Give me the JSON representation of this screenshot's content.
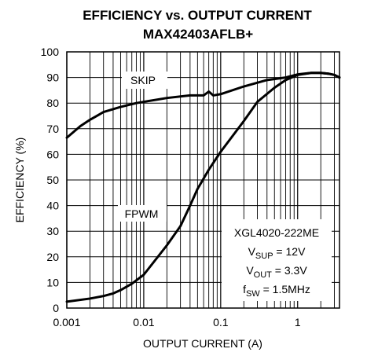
{
  "chart_data": {
    "type": "line",
    "title": "EFFICIENCY vs. OUTPUT CURRENT",
    "subtitle": "MAX42403AFLB+",
    "xlabel": "OUTPUT CURRENT (A)",
    "ylabel": "EFFICIENCY (%)",
    "x_scale": "log",
    "xlim": [
      0.001,
      3.5
    ],
    "ylim": [
      0,
      100
    ],
    "x_ticks": [
      "0.001",
      "0.01",
      "0.1",
      "1"
    ],
    "y_ticks": [
      "0",
      "10",
      "20",
      "30",
      "40",
      "50",
      "60",
      "70",
      "80",
      "90",
      "100"
    ],
    "grid": true,
    "series": [
      {
        "name": "SKIP",
        "x": [
          0.001,
          0.0015,
          0.002,
          0.003,
          0.005,
          0.008,
          0.01,
          0.02,
          0.04,
          0.06,
          0.07,
          0.08,
          0.1,
          0.2,
          0.4,
          0.7,
          1.0,
          1.5,
          2.0,
          2.5,
          3.0,
          3.5
        ],
        "y": [
          66.5,
          71,
          73.5,
          76.5,
          78.5,
          80,
          80.5,
          82,
          83,
          83,
          84.5,
          83,
          83.5,
          86.5,
          89,
          90,
          91.2,
          91.8,
          91.8,
          91.5,
          91,
          90
        ]
      },
      {
        "name": "FPWM",
        "x": [
          0.001,
          0.002,
          0.003,
          0.004,
          0.005,
          0.007,
          0.01,
          0.02,
          0.03,
          0.04,
          0.05,
          0.07,
          0.1,
          0.2,
          0.3,
          0.5,
          0.7,
          1.0,
          1.5,
          2.0,
          2.5,
          3.0,
          3.5
        ],
        "y": [
          2.5,
          3.7,
          4.7,
          5.7,
          7,
          9.5,
          13,
          24.5,
          32,
          40,
          46.5,
          54,
          61,
          73,
          80.5,
          86,
          89,
          91,
          91.8,
          91.8,
          91.5,
          91,
          90
        ]
      }
    ],
    "annotations": {
      "line1": "XGL4020-222ME",
      "vsup_prefix": "V",
      "vsup_sub": "SUP",
      "vsup_value": " = 12V",
      "vout_prefix": "V",
      "vout_sub": "OUT",
      "vout_value": " = 3.3V",
      "fsw_prefix": "f",
      "fsw_sub": "SW",
      "fsw_value": " = 1.5MHz"
    }
  }
}
